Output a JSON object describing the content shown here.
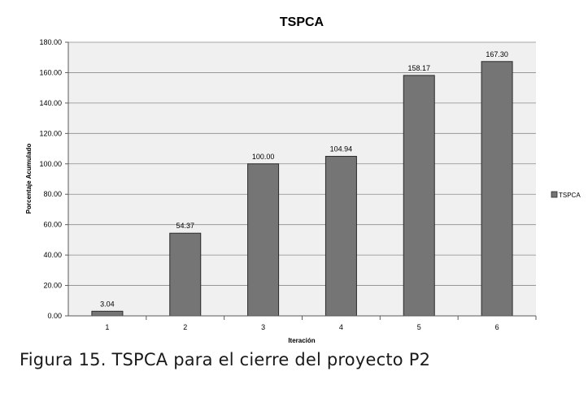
{
  "caption": "Figura 15. TSPCA para el cierre del proyecto P2",
  "colors": {
    "bar": "#757575",
    "bar_stroke": "#2a2a2a",
    "plot_bg": "#f0f0f0",
    "grid": "#8a8a8a"
  },
  "chart_data": {
    "type": "bar",
    "title": "TSPCA",
    "xlabel": "Iteración",
    "ylabel": "Porcentaje Acumulado",
    "categories": [
      "1",
      "2",
      "3",
      "4",
      "5",
      "6"
    ],
    "series": [
      {
        "name": "TSPCA",
        "values": [
          3.04,
          54.37,
          100.0,
          104.94,
          158.17,
          167.3
        ]
      }
    ],
    "data_labels": [
      "3.04",
      "54.37",
      "100.00",
      "104.94",
      "158.17",
      "167.30"
    ],
    "y_ticks": [
      "0.00",
      "20.00",
      "40.00",
      "60.00",
      "80.00",
      "100.00",
      "120.00",
      "140.00",
      "160.00",
      "180.00"
    ],
    "ylim": [
      0,
      180
    ],
    "grid": true,
    "legend": "right"
  }
}
